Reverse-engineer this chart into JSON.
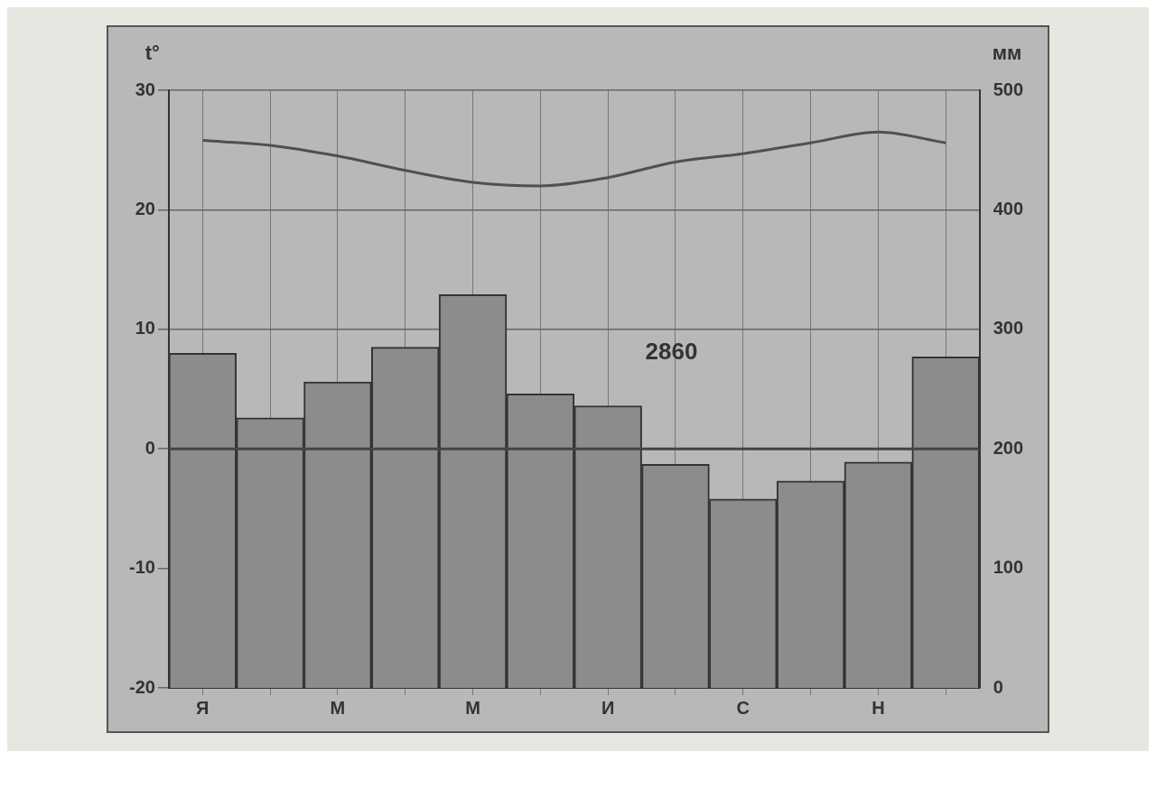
{
  "chart_data": {
    "type": "bar",
    "ylabel": "t°",
    "y2label": "мм",
    "categories": [
      "Я",
      null,
      "М",
      null,
      "М",
      null,
      "И",
      null,
      "С",
      null,
      "Н",
      null
    ],
    "series": [
      {
        "axis": "y2",
        "color": "#8c8c8c",
        "values": [
          280,
          226,
          256,
          285,
          329,
          246,
          236,
          187,
          158,
          173,
          189,
          277
        ]
      },
      {
        "type": "line",
        "axis": "y",
        "color": "#505050",
        "values": [
          25.8,
          25.4,
          24.5,
          23.3,
          22.3,
          22,
          22.7,
          24,
          24.7,
          25.6,
          26.5,
          25.6
        ]
      }
    ],
    "ylim": [
      -20,
      30
    ],
    "yticks": [
      -20,
      -10,
      0,
      10,
      20,
      30
    ],
    "y2lim": [
      0,
      500
    ],
    "y2ticks": [
      0,
      100,
      200,
      300,
      400,
      500
    ],
    "ref_lines": [
      {
        "axis": "y",
        "value": 0,
        "color": "#444444"
      }
    ],
    "annotations": [
      "2860"
    ],
    "grid": true,
    "legend": false,
    "marker": "none",
    "line_style": "solid"
  }
}
